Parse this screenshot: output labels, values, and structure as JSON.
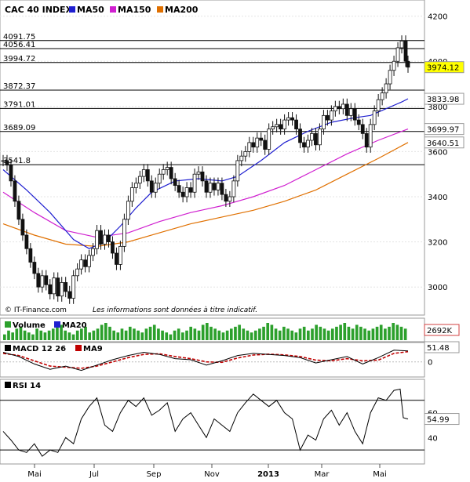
{
  "chart_data": {
    "type": "line",
    "title": "CAC 40 INDEX",
    "legend": [
      {
        "label": "MA50",
        "color": "#1f1fd0"
      },
      {
        "label": "MA150",
        "color": "#d020d0"
      },
      {
        "label": "MA200",
        "color": "#e07000"
      }
    ],
    "credit": "© IT-Finance.com",
    "disclaimer": "Les informations sont données à titre indicatif.",
    "x_ticks": [
      "Mai",
      "Jul",
      "Sep",
      "Nov",
      "2013",
      "Mar",
      "Mai"
    ],
    "main": {
      "y_ticks": [
        3000,
        3200,
        3400,
        3600,
        3800,
        4000,
        4200
      ],
      "ylim": [
        2900,
        4230
      ],
      "h_levels": [
        {
          "label": "4091.75",
          "value": 4091.75
        },
        {
          "label": "4056.41",
          "value": 4056.41
        },
        {
          "label": "3994.72",
          "value": 3994.72
        },
        {
          "label": "3872.37",
          "value": 3872.37
        },
        {
          "label": "3791.01",
          "value": 3791.01
        },
        {
          "label": "3689.09",
          "value": 3689.09
        },
        {
          "label": "3541.8",
          "value": 3541.8
        }
      ],
      "price_points": [
        [
          0,
          3560
        ],
        [
          5,
          3540
        ],
        [
          10,
          3470
        ],
        [
          15,
          3380
        ],
        [
          20,
          3300
        ],
        [
          25,
          3230
        ],
        [
          30,
          3170
        ],
        [
          35,
          3110
        ],
        [
          40,
          3060
        ],
        [
          45,
          3000
        ],
        [
          50,
          3050
        ],
        [
          55,
          3010
        ],
        [
          60,
          2970
        ],
        [
          65,
          3040
        ],
        [
          70,
          2960
        ],
        [
          75,
          3020
        ],
        [
          80,
          2980
        ],
        [
          85,
          2950
        ],
        [
          90,
          3050
        ],
        [
          95,
          3080
        ],
        [
          100,
          3120
        ],
        [
          105,
          3090
        ],
        [
          110,
          3140
        ],
        [
          115,
          3170
        ],
        [
          120,
          3250
        ],
        [
          125,
          3190
        ],
        [
          130,
          3230
        ],
        [
          135,
          3200
        ],
        [
          140,
          3150
        ],
        [
          145,
          3100
        ],
        [
          150,
          3180
        ],
        [
          155,
          3300
        ],
        [
          160,
          3380
        ],
        [
          165,
          3440
        ],
        [
          170,
          3460
        ],
        [
          175,
          3490
        ],
        [
          180,
          3520
        ],
        [
          185,
          3470
        ],
        [
          190,
          3420
        ],
        [
          195,
          3460
        ],
        [
          200,
          3500
        ],
        [
          205,
          3520
        ],
        [
          210,
          3530
        ],
        [
          215,
          3480
        ],
        [
          220,
          3450
        ],
        [
          225,
          3420
        ],
        [
          230,
          3400
        ],
        [
          235,
          3440
        ],
        [
          240,
          3420
        ],
        [
          245,
          3500
        ],
        [
          250,
          3510
        ],
        [
          255,
          3470
        ],
        [
          260,
          3420
        ],
        [
          265,
          3460
        ],
        [
          270,
          3430
        ],
        [
          275,
          3460
        ],
        [
          280,
          3410
        ],
        [
          285,
          3380
        ],
        [
          290,
          3400
        ],
        [
          295,
          3470
        ],
        [
          300,
          3560
        ],
        [
          305,
          3580
        ],
        [
          310,
          3600
        ],
        [
          315,
          3640
        ],
        [
          320,
          3620
        ],
        [
          325,
          3660
        ],
        [
          330,
          3650
        ],
        [
          335,
          3610
        ],
        [
          340,
          3700
        ],
        [
          345,
          3710
        ],
        [
          350,
          3720
        ],
        [
          355,
          3700
        ],
        [
          360,
          3740
        ],
        [
          365,
          3750
        ],
        [
          370,
          3740
        ],
        [
          375,
          3700
        ],
        [
          380,
          3640
        ],
        [
          385,
          3620
        ],
        [
          390,
          3650
        ],
        [
          395,
          3680
        ],
        [
          400,
          3630
        ],
        [
          405,
          3700
        ],
        [
          410,
          3760
        ],
        [
          415,
          3740
        ],
        [
          420,
          3780
        ],
        [
          425,
          3800
        ],
        [
          430,
          3790
        ],
        [
          435,
          3810
        ],
        [
          440,
          3760
        ],
        [
          445,
          3790
        ],
        [
          450,
          3740
        ],
        [
          455,
          3720
        ],
        [
          460,
          3680
        ],
        [
          465,
          3620
        ],
        [
          470,
          3720
        ],
        [
          475,
          3780
        ],
        [
          480,
          3830
        ],
        [
          485,
          3860
        ],
        [
          490,
          3900
        ],
        [
          495,
          3960
        ],
        [
          500,
          4000
        ],
        [
          505,
          4060
        ],
        [
          510,
          4090
        ],
        [
          515,
          4000
        ],
        [
          518,
          3974.12
        ]
      ],
      "ma50_points": [
        [
          0,
          3520
        ],
        [
          30,
          3430
        ],
        [
          60,
          3330
        ],
        [
          90,
          3210
        ],
        [
          110,
          3170
        ],
        [
          130,
          3200
        ],
        [
          150,
          3270
        ],
        [
          170,
          3350
        ],
        [
          190,
          3420
        ],
        [
          220,
          3470
        ],
        [
          250,
          3480
        ],
        [
          280,
          3470
        ],
        [
          300,
          3490
        ],
        [
          330,
          3560
        ],
        [
          360,
          3640
        ],
        [
          390,
          3690
        ],
        [
          420,
          3730
        ],
        [
          450,
          3750
        ],
        [
          470,
          3760
        ],
        [
          490,
          3790
        ],
        [
          510,
          3820
        ],
        [
          518,
          3833.98
        ]
      ],
      "ma150_points": [
        [
          0,
          3420
        ],
        [
          40,
          3330
        ],
        [
          80,
          3250
        ],
        [
          120,
          3220
        ],
        [
          160,
          3240
        ],
        [
          200,
          3290
        ],
        [
          240,
          3330
        ],
        [
          280,
          3360
        ],
        [
          320,
          3400
        ],
        [
          360,
          3450
        ],
        [
          400,
          3520
        ],
        [
          440,
          3590
        ],
        [
          480,
          3650
        ],
        [
          518,
          3699.97
        ]
      ],
      "ma200_points": [
        [
          0,
          3280
        ],
        [
          40,
          3230
        ],
        [
          80,
          3190
        ],
        [
          120,
          3180
        ],
        [
          160,
          3200
        ],
        [
          200,
          3240
        ],
        [
          240,
          3280
        ],
        [
          280,
          3310
        ],
        [
          320,
          3340
        ],
        [
          360,
          3380
        ],
        [
          400,
          3430
        ],
        [
          440,
          3500
        ],
        [
          480,
          3570
        ],
        [
          518,
          3640.51
        ]
      ],
      "last_labels": [
        {
          "label": "3974.12",
          "value": 3974.12,
          "bg": "#ffff00",
          "fg": "#000000"
        },
        {
          "label": "3833.98",
          "value": 3833.98,
          "bg": "#ffffff",
          "fg": "#1f1fd0"
        },
        {
          "label": "3699.97",
          "value": 3699.97,
          "bg": "#ffffff",
          "fg": "#d020d0"
        },
        {
          "label": "3640.51",
          "value": 3640.51,
          "bg": "#ffffff",
          "fg": "#e07000"
        }
      ]
    },
    "volume": {
      "legend": [
        {
          "label": "Volume",
          "color": "#2ca02c"
        },
        {
          "label": "MA20",
          "color": "#1f1fd0"
        }
      ],
      "last_label": "2692K",
      "bars": [
        3,
        5,
        4,
        6,
        7,
        5,
        4,
        3,
        6,
        5,
        4,
        5,
        6,
        7,
        8,
        5,
        4,
        3,
        5,
        6,
        7,
        4,
        5,
        6,
        8,
        9,
        7,
        5,
        4,
        6,
        5,
        7,
        6,
        5,
        4,
        6,
        7,
        8,
        6,
        5,
        4,
        3,
        5,
        6,
        4,
        5,
        7,
        6,
        5,
        8,
        9,
        7,
        6,
        5,
        4,
        5,
        6,
        7,
        8,
        6,
        5,
        4,
        5,
        6,
        7,
        9,
        8,
        6,
        5,
        7,
        6,
        5,
        4,
        6,
        7,
        5,
        6,
        8,
        7,
        6,
        5,
        6,
        7,
        8,
        9,
        7,
        6,
        8,
        7,
        6,
        5,
        6,
        7,
        8,
        6,
        7,
        9,
        8,
        7,
        6
      ]
    },
    "macd": {
      "title": "MACD 12 26",
      "signal_label": "MA9",
      "last_label": "51.48",
      "zero_label": "0",
      "ylim": [
        -60,
        80
      ],
      "macd_points": [
        [
          0,
          45
        ],
        [
          20,
          25
        ],
        [
          40,
          -10
        ],
        [
          60,
          -35
        ],
        [
          80,
          -20
        ],
        [
          100,
          -40
        ],
        [
          120,
          -15
        ],
        [
          140,
          10
        ],
        [
          160,
          30
        ],
        [
          180,
          45
        ],
        [
          200,
          35
        ],
        [
          220,
          15
        ],
        [
          240,
          10
        ],
        [
          260,
          -15
        ],
        [
          280,
          5
        ],
        [
          300,
          30
        ],
        [
          320,
          40
        ],
        [
          340,
          35
        ],
        [
          360,
          30
        ],
        [
          380,
          20
        ],
        [
          400,
          -5
        ],
        [
          420,
          10
        ],
        [
          440,
          25
        ],
        [
          460,
          -10
        ],
        [
          480,
          20
        ],
        [
          500,
          55
        ],
        [
          518,
          51.48
        ]
      ],
      "signal_points": [
        [
          0,
          40
        ],
        [
          20,
          30
        ],
        [
          40,
          5
        ],
        [
          60,
          -20
        ],
        [
          80,
          -25
        ],
        [
          100,
          -30
        ],
        [
          120,
          -20
        ],
        [
          140,
          0
        ],
        [
          160,
          20
        ],
        [
          180,
          35
        ],
        [
          200,
          38
        ],
        [
          220,
          25
        ],
        [
          240,
          15
        ],
        [
          260,
          0
        ],
        [
          280,
          -2
        ],
        [
          300,
          18
        ],
        [
          320,
          32
        ],
        [
          340,
          36
        ],
        [
          360,
          33
        ],
        [
          380,
          25
        ],
        [
          400,
          8
        ],
        [
          420,
          5
        ],
        [
          440,
          15
        ],
        [
          460,
          5
        ],
        [
          480,
          8
        ],
        [
          500,
          40
        ],
        [
          518,
          48
        ]
      ]
    },
    "rsi": {
      "title": "RSI 14",
      "y_ticks": [
        40,
        60
      ],
      "last_label": "54.99",
      "ylim": [
        20,
        85
      ],
      "points": [
        [
          0,
          45
        ],
        [
          10,
          38
        ],
        [
          20,
          30
        ],
        [
          30,
          28
        ],
        [
          40,
          35
        ],
        [
          50,
          25
        ],
        [
          60,
          30
        ],
        [
          70,
          28
        ],
        [
          80,
          40
        ],
        [
          90,
          35
        ],
        [
          100,
          55
        ],
        [
          110,
          65
        ],
        [
          120,
          72
        ],
        [
          130,
          50
        ],
        [
          140,
          45
        ],
        [
          150,
          60
        ],
        [
          160,
          70
        ],
        [
          170,
          65
        ],
        [
          180,
          72
        ],
        [
          190,
          58
        ],
        [
          200,
          62
        ],
        [
          210,
          68
        ],
        [
          220,
          45
        ],
        [
          230,
          55
        ],
        [
          240,
          60
        ],
        [
          250,
          50
        ],
        [
          260,
          40
        ],
        [
          270,
          55
        ],
        [
          280,
          50
        ],
        [
          290,
          45
        ],
        [
          300,
          60
        ],
        [
          310,
          68
        ],
        [
          320,
          75
        ],
        [
          330,
          70
        ],
        [
          340,
          65
        ],
        [
          350,
          70
        ],
        [
          360,
          60
        ],
        [
          370,
          55
        ],
        [
          380,
          30
        ],
        [
          390,
          42
        ],
        [
          400,
          38
        ],
        [
          410,
          55
        ],
        [
          420,
          62
        ],
        [
          430,
          50
        ],
        [
          440,
          60
        ],
        [
          450,
          45
        ],
        [
          460,
          35
        ],
        [
          470,
          60
        ],
        [
          480,
          72
        ],
        [
          490,
          70
        ],
        [
          500,
          78
        ],
        [
          508,
          79
        ],
        [
          512,
          56
        ],
        [
          518,
          54.99
        ]
      ]
    }
  }
}
